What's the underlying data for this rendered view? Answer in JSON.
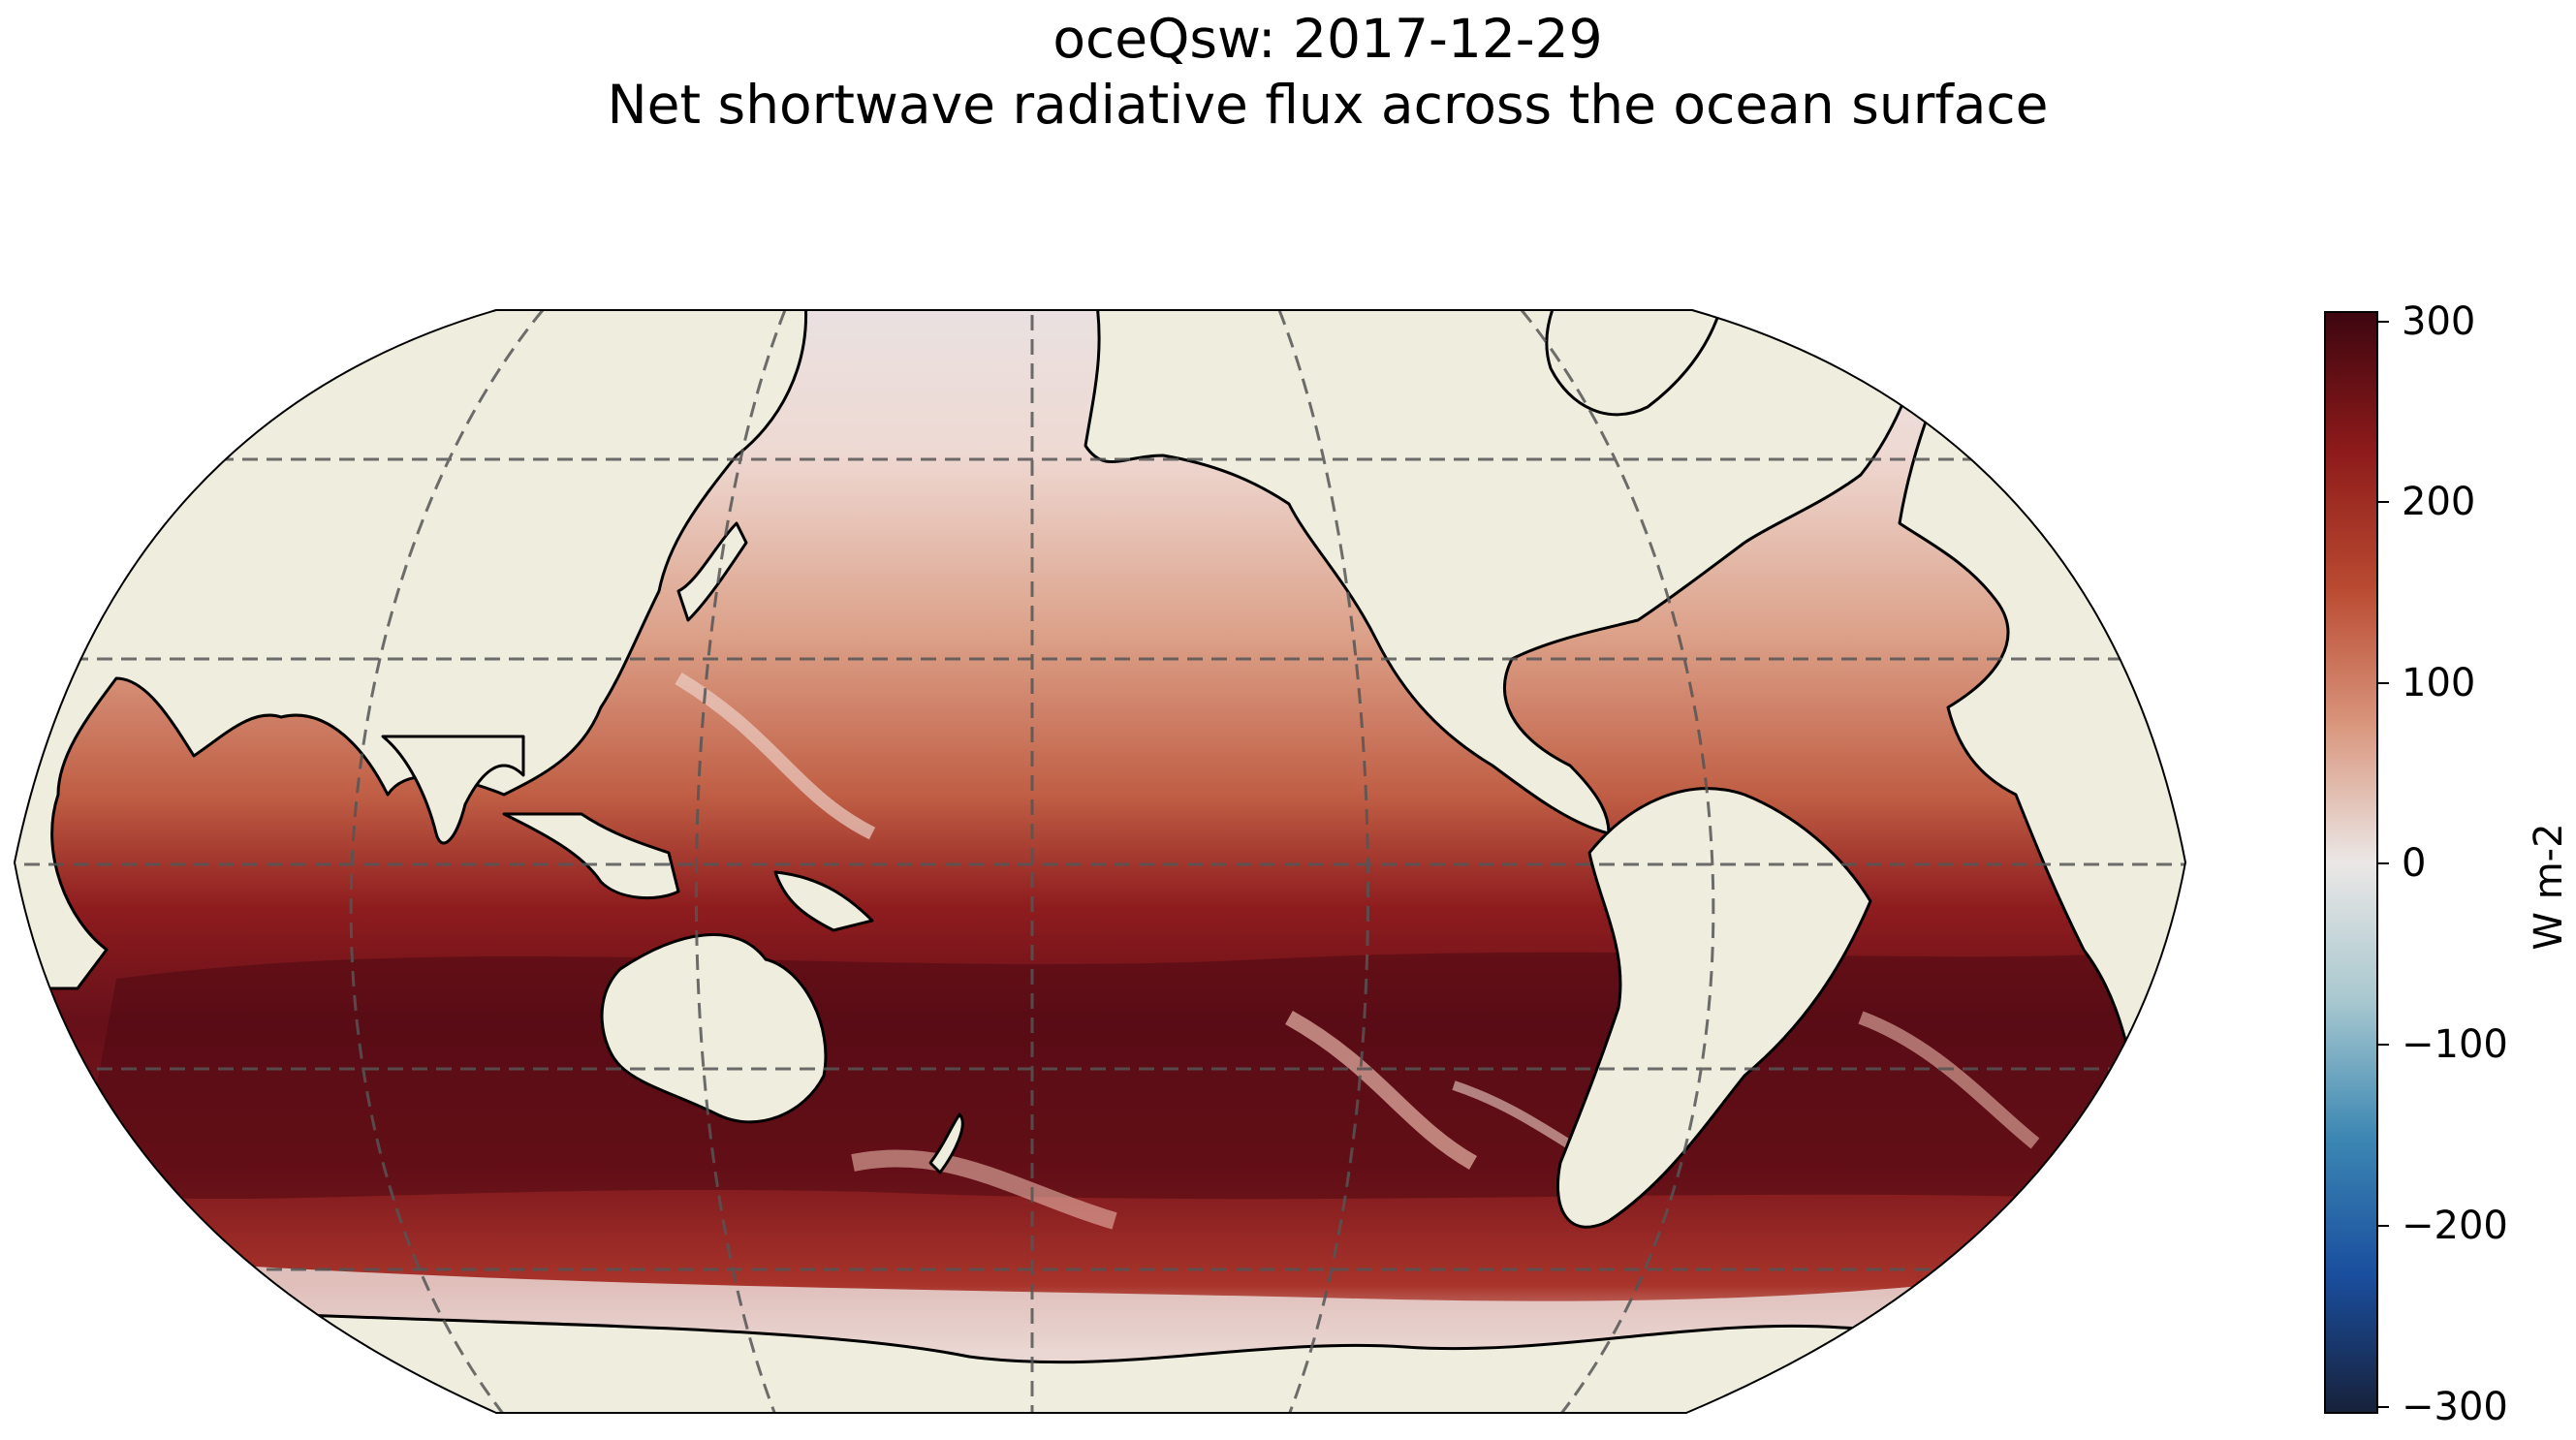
{
  "title": {
    "line1": "oceQsw: 2017-12-29",
    "line2": "Net shortwave radiative flux across the ocean surface"
  },
  "colorbar": {
    "label": "W m-2",
    "ticks": [
      "300",
      "200",
      "100",
      "0",
      "−100",
      "−200",
      "−300"
    ],
    "range": [
      -300,
      300
    ],
    "colors": [
      "#17213a",
      "#1a4e9e",
      "#3c87b3",
      "#a8c8cf",
      "#ebe7e6",
      "#d9967d",
      "#b94a31",
      "#8d1a1a",
      "#3d0610"
    ]
  },
  "map": {
    "projection": "Robinson",
    "central_longitude": 180,
    "land_color": "#efedde",
    "gridlines": "dashed",
    "parallels_deg": [
      -60,
      -30,
      0,
      30,
      60
    ],
    "meridians_deg": [
      60,
      120,
      180,
      240,
      300
    ]
  }
}
